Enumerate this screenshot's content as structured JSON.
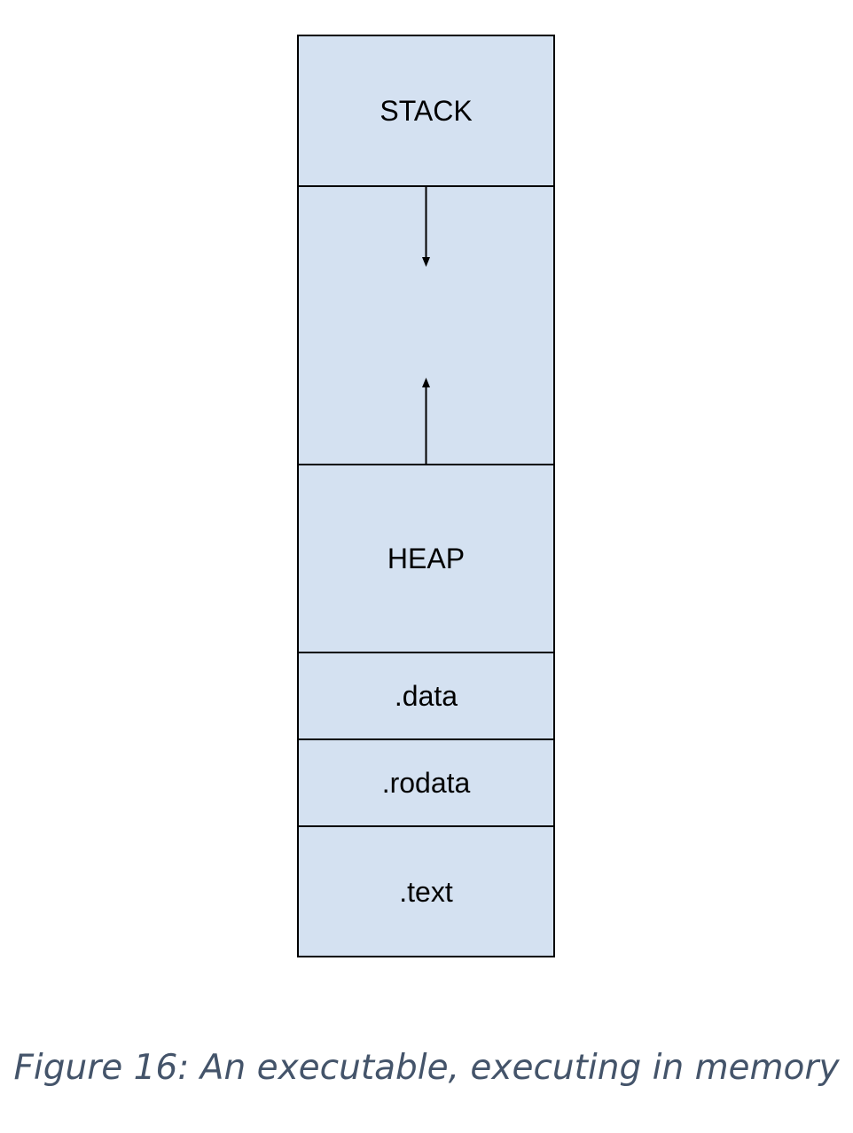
{
  "diagram": {
    "segments": {
      "stack": "STACK",
      "gap": "",
      "heap": "HEAP",
      "data": ".data",
      "rodata": ".rodata",
      "text": ".text"
    },
    "colors": {
      "segment_fill": "#d4e1f1",
      "border": "#000000",
      "caption": "#44546a"
    }
  },
  "caption": "Figure 16: An executable, executing in memory"
}
